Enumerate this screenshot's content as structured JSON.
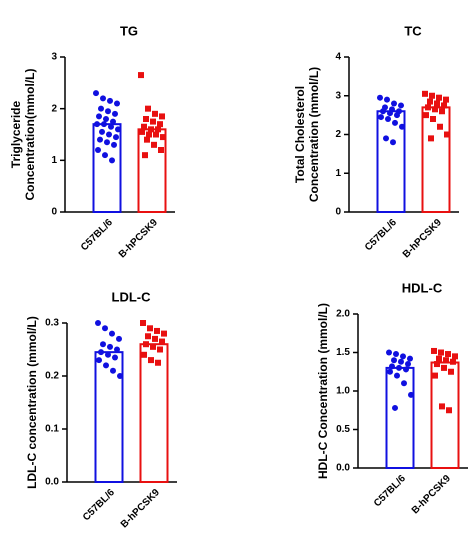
{
  "chart_data": [
    {
      "type": "bar",
      "title": "TG",
      "ylabel": [
        "Triglyceride",
        "Concentration(mmol/L)"
      ],
      "categories": [
        "C57BL/6",
        "B-hPCSK9"
      ],
      "values": [
        1.7,
        1.6
      ],
      "colors": [
        "#1010e0",
        "#e81010"
      ],
      "markers": [
        "circle",
        "square"
      ],
      "points": [
        [
          2.3,
          2.2,
          2.15,
          2.1,
          2.0,
          1.95,
          1.9,
          1.85,
          1.8,
          1.75,
          1.7,
          1.7,
          1.65,
          1.6,
          1.55,
          1.5,
          1.45,
          1.4,
          1.35,
          1.3,
          1.2,
          1.1,
          1.0
        ],
        [
          2.65,
          2.0,
          1.9,
          1.85,
          1.8,
          1.75,
          1.7,
          1.65,
          1.6,
          1.6,
          1.55,
          1.5,
          1.5,
          1.45,
          1.4,
          1.3,
          1.2,
          1.1
        ]
      ],
      "ylim": [
        0,
        3
      ],
      "yticks": [
        0,
        1,
        2,
        3
      ]
    },
    {
      "type": "bar",
      "title": "TC",
      "ylabel": [
        "Total Cholesterol",
        "Concentration (mmol/L)"
      ],
      "categories": [
        "C57BL/6",
        "B-hPCSK9"
      ],
      "values": [
        2.6,
        2.7
      ],
      "colors": [
        "#1010e0",
        "#e81010"
      ],
      "markers": [
        "circle",
        "square"
      ],
      "points": [
        [
          2.95,
          2.9,
          2.8,
          2.75,
          2.7,
          2.65,
          2.6,
          2.6,
          2.55,
          2.5,
          2.45,
          2.4,
          2.3,
          2.2,
          1.9,
          1.8
        ],
        [
          3.05,
          3.0,
          2.95,
          2.9,
          2.85,
          2.8,
          2.75,
          2.7,
          2.65,
          2.6,
          2.5,
          2.4,
          2.2,
          2.0,
          1.9
        ]
      ],
      "ylim": [
        0,
        4
      ],
      "yticks": [
        0,
        1,
        2,
        3,
        4
      ]
    },
    {
      "type": "bar",
      "title": "LDL-C",
      "ylabel": [
        "LDL-C concentration (mmol/L)"
      ],
      "categories": [
        "C57BL/6",
        "B-hPCSK9"
      ],
      "values": [
        0.245,
        0.26
      ],
      "colors": [
        "#1010e0",
        "#e81010"
      ],
      "markers": [
        "circle",
        "square"
      ],
      "points": [
        [
          0.3,
          0.29,
          0.28,
          0.27,
          0.26,
          0.255,
          0.25,
          0.245,
          0.24,
          0.235,
          0.23,
          0.22,
          0.21,
          0.2
        ],
        [
          0.3,
          0.29,
          0.285,
          0.28,
          0.275,
          0.27,
          0.265,
          0.26,
          0.255,
          0.25,
          0.24,
          0.23,
          0.225
        ]
      ],
      "ylim": [
        0,
        0.3
      ],
      "yticks": [
        {
          "value": 0,
          "label": "0.0"
        },
        0.1,
        0.2,
        0.3
      ]
    },
    {
      "type": "bar",
      "title": "HDL-C",
      "ylabel": [
        "HDL-C Concentration (mmol/L)"
      ],
      "categories": [
        "C57BL/6",
        "B-hPCSK9"
      ],
      "values": [
        1.3,
        1.37
      ],
      "colors": [
        "#1010e0",
        "#e81010"
      ],
      "markers": [
        "circle",
        "square"
      ],
      "points": [
        [
          1.5,
          1.48,
          1.45,
          1.42,
          1.4,
          1.38,
          1.35,
          1.32,
          1.3,
          1.28,
          1.25,
          1.2,
          1.1,
          0.95,
          0.78
        ],
        [
          1.52,
          1.5,
          1.48,
          1.45,
          1.42,
          1.4,
          1.38,
          1.35,
          1.3,
          1.25,
          1.2,
          0.8,
          0.75
        ]
      ],
      "ylim": [
        0,
        2
      ],
      "yticks": [
        {
          "value": 0,
          "label": "0.0"
        },
        0.5,
        {
          "value": 1,
          "label": "1.0"
        },
        1.5,
        {
          "value": 2,
          "label": "2.0"
        }
      ]
    }
  ]
}
